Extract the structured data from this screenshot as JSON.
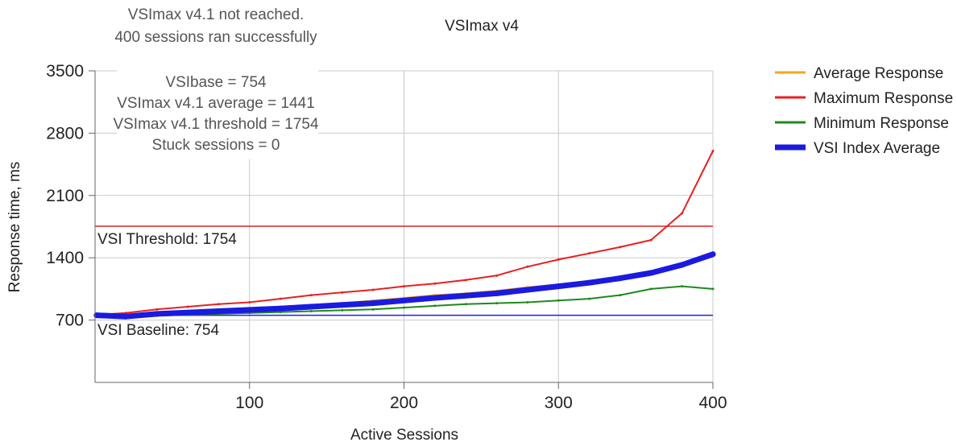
{
  "colors": {
    "average": "#f5a623",
    "maximum": "#e8201e",
    "minimum": "#1e8a1e",
    "vsi_index": "#1a1ae0",
    "threshold_line": "#e02020",
    "baseline_line": "#2020e0",
    "grid": "#c8c8c8"
  },
  "chart_data": {
    "type": "line",
    "title": "VSImax v4",
    "subtitle": "VSImax v4.1 not reached.",
    "subtitle2": "400 sessions ran successfully",
    "xlabel": "Active Sessions",
    "ylabel": "Response time, ms",
    "xlim": [
      0,
      400
    ],
    "ylim": [
      0,
      3500
    ],
    "yticks": [
      "3500",
      "2800",
      "2100",
      "1400",
      "700"
    ],
    "xticks": [
      "100",
      "200",
      "300",
      "400"
    ],
    "grid": true,
    "legend_position": "right",
    "stats": {
      "vsibase": "VSIbase = 754",
      "average": "VSImax v4.1 average = 1441",
      "threshold": "VSImax v4.1 threshold = 1754",
      "stuck": "Stuck sessions = 0"
    },
    "reference_lines": [
      {
        "label": "VSI Threshold: 1754",
        "value": 1754
      },
      {
        "label": "VSI Baseline: 754",
        "value": 754
      }
    ],
    "x": [
      1,
      20,
      40,
      60,
      80,
      100,
      120,
      140,
      160,
      180,
      200,
      220,
      240,
      260,
      280,
      300,
      320,
      340,
      360,
      380,
      400
    ],
    "series": [
      {
        "name": "Average Response",
        "key": "average",
        "values": [
          760,
          740,
          770,
          790,
          810,
          830,
          850,
          870,
          890,
          920,
          950,
          980,
          1000,
          1030,
          1070,
          1100,
          1130,
          1170,
          1220,
          1300,
          1430
        ]
      },
      {
        "name": "Maximum Response",
        "key": "maximum",
        "values": [
          760,
          780,
          820,
          850,
          880,
          900,
          940,
          980,
          1010,
          1040,
          1080,
          1110,
          1150,
          1200,
          1300,
          1380,
          1450,
          1520,
          1600,
          1900,
          2600
        ]
      },
      {
        "name": "Minimum Response",
        "key": "minimum",
        "values": [
          740,
          730,
          750,
          760,
          770,
          780,
          790,
          800,
          810,
          820,
          840,
          860,
          880,
          890,
          900,
          920,
          940,
          980,
          1050,
          1080,
          1050
        ]
      },
      {
        "name": "VSI Index Average",
        "key": "vsi_index",
        "values": [
          754,
          740,
          770,
          785,
          800,
          815,
          830,
          850,
          870,
          890,
          920,
          950,
          975,
          1000,
          1040,
          1080,
          1120,
          1170,
          1230,
          1320,
          1440
        ]
      }
    ]
  }
}
